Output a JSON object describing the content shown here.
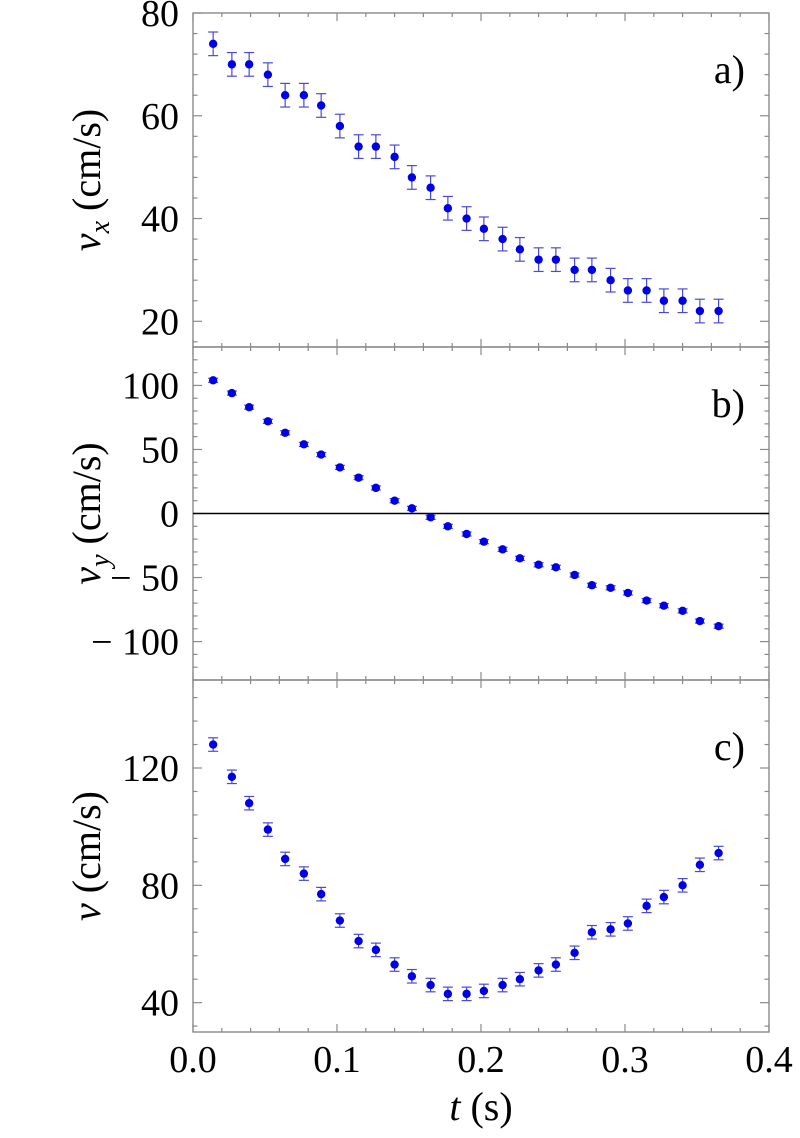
{
  "chart_data": [
    {
      "type": "scatter",
      "panel_label": "a)",
      "ylabel_symbol": "v",
      "ylabel_subscript": "x",
      "ylabel_unit": " (cm/s)",
      "ylim": [
        15,
        80
      ],
      "yticks": [
        20,
        40,
        60,
        80
      ],
      "ytick_labels": [
        "20",
        "40",
        "60",
        "80"
      ],
      "series": [
        {
          "color": "#0000e6",
          "x": [
            0.014,
            0.027,
            0.039,
            0.052,
            0.064,
            0.077,
            0.089,
            0.102,
            0.115,
            0.127,
            0.14,
            0.152,
            0.165,
            0.177,
            0.19,
            0.202,
            0.215,
            0.227,
            0.24,
            0.252,
            0.265,
            0.277,
            0.29,
            0.302,
            0.315,
            0.327,
            0.34,
            0.352,
            0.365
          ],
          "y": [
            74,
            70,
            70,
            68,
            64,
            64,
            62,
            58,
            54,
            54,
            52,
            48,
            46,
            42,
            40,
            38,
            36,
            34,
            32,
            32,
            30,
            30,
            28,
            26,
            26,
            24,
            24,
            22,
            22
          ],
          "err": [
            2.3,
            2.3,
            2.3,
            2.3,
            2.3,
            2.3,
            2.3,
            2.3,
            2.3,
            2.3,
            2.3,
            2.3,
            2.3,
            2.3,
            2.3,
            2.3,
            2.3,
            2.3,
            2.3,
            2.3,
            2.3,
            2.3,
            2.3,
            2.3,
            2.3,
            2.3,
            2.3,
            2.3,
            2.3
          ]
        }
      ]
    },
    {
      "type": "scatter",
      "panel_label": "b)",
      "ylabel_symbol": "v",
      "ylabel_subscript": "y",
      "ylabel_unit": " (cm/s)",
      "ylim": [
        -130,
        130
      ],
      "yticks": [
        -100,
        -50,
        0,
        50,
        100
      ],
      "ytick_labels": [
        "− 100",
        "− 50",
        "0",
        "50",
        "100"
      ],
      "zero_line": true,
      "series": [
        {
          "color": "#0000e6",
          "x": [
            0.014,
            0.027,
            0.039,
            0.052,
            0.064,
            0.077,
            0.089,
            0.102,
            0.115,
            0.127,
            0.14,
            0.152,
            0.165,
            0.177,
            0.19,
            0.202,
            0.215,
            0.227,
            0.24,
            0.252,
            0.265,
            0.277,
            0.29,
            0.302,
            0.315,
            0.327,
            0.34,
            0.352,
            0.365
          ],
          "y": [
            104,
            94,
            83,
            72,
            63,
            54,
            46,
            36,
            28,
            20,
            10,
            4,
            -3,
            -10,
            -16,
            -22,
            -28,
            -35,
            -40,
            -42,
            -48,
            -56,
            -58,
            -62,
            -68,
            -72,
            -76,
            -84,
            -88
          ],
          "err": [
            1.6,
            1.6,
            1.6,
            1.6,
            1.6,
            1.6,
            1.6,
            1.6,
            1.6,
            1.6,
            1.6,
            1.6,
            1.6,
            1.6,
            1.6,
            1.6,
            1.6,
            1.6,
            1.6,
            1.6,
            1.6,
            1.6,
            1.6,
            1.6,
            1.6,
            1.6,
            1.6,
            1.6,
            1.6
          ]
        }
      ]
    },
    {
      "type": "scatter",
      "panel_label": "c)",
      "ylabel_symbol": "v",
      "ylabel_subscript": "",
      "ylabel_unit": " (cm/s)",
      "ylim": [
        30,
        150
      ],
      "yticks": [
        40,
        80,
        120
      ],
      "ytick_labels": [
        "40",
        "80",
        "120"
      ],
      "xlim": [
        0,
        0.4
      ],
      "xticks": [
        0,
        0.1,
        0.2,
        0.3,
        0.4
      ],
      "xtick_labels": [
        "0.0",
        "0.1",
        "0.2",
        "0.3",
        "0.4"
      ],
      "xlabel_symbol": "t",
      "xlabel_unit": " (s)",
      "series": [
        {
          "color": "#0000e6",
          "x": [
            0.014,
            0.027,
            0.039,
            0.052,
            0.064,
            0.077,
            0.089,
            0.102,
            0.115,
            0.127,
            0.14,
            0.152,
            0.165,
            0.177,
            0.19,
            0.202,
            0.215,
            0.227,
            0.24,
            0.252,
            0.265,
            0.277,
            0.29,
            0.302,
            0.315,
            0.327,
            0.34,
            0.352,
            0.365
          ],
          "y": [
            128,
            117,
            108,
            99,
            89,
            84,
            77,
            68,
            61,
            58,
            53,
            49,
            46,
            43,
            43,
            44,
            46,
            48,
            51,
            53,
            57,
            64,
            65,
            67,
            73,
            76,
            80,
            87,
            91
          ],
          "err": [
            2.3,
            2.3,
            2.3,
            2.3,
            2.3,
            2.3,
            2.3,
            2.3,
            2.3,
            2.3,
            2.3,
            2.3,
            2.3,
            2.3,
            2.3,
            2.3,
            2.3,
            2.3,
            2.3,
            2.3,
            2.3,
            2.3,
            2.3,
            2.3,
            2.3,
            2.3,
            2.3,
            2.3,
            2.3
          ]
        }
      ]
    }
  ]
}
